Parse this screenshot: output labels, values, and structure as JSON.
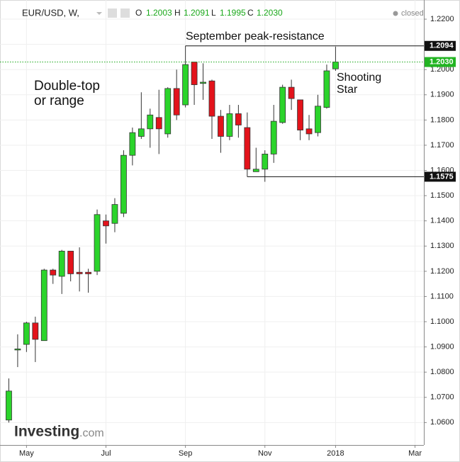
{
  "chart_data": {
    "type": "candlestick",
    "header": {
      "symbol": "EUR/USD, W,",
      "o_label": "O",
      "o": "1.2003",
      "h_label": "H",
      "h": "1.2091",
      "l_label": "L",
      "l": "1.1995",
      "c_label": "C",
      "c": "1.2030",
      "status": "closed"
    },
    "annotations": {
      "resistance": "September peak-resistance",
      "pattern": [
        "Double-top",
        "or range"
      ],
      "candle": [
        "Shooting",
        "Star"
      ]
    },
    "brand": {
      "name": "Investing",
      "suffix": ".com"
    },
    "up_color": "#2bd42b",
    "down_color": "#e3131b",
    "open": [
      1.061,
      1.0888,
      1.091,
      1.0995,
      1.0925,
      1.1205,
      1.118,
      1.128,
      1.1196,
      1.1196,
      1.12,
      1.14,
      1.139,
      1.143,
      1.166,
      1.1735,
      1.1765,
      1.181,
      1.1745,
      1.1925,
      1.186,
      1.203,
      1.1945,
      1.1955,
      1.1815,
      1.1735,
      1.1825,
      1.177,
      1.1595,
      1.1605,
      1.1665,
      1.179,
      1.193,
      1.188,
      1.1765,
      1.175,
      1.185,
      1.2003
    ],
    "high": [
      1.0775,
      1.095,
      1.1,
      1.102,
      1.121,
      1.121,
      1.1285,
      1.127,
      1.1295,
      1.121,
      1.1445,
      1.1425,
      1.149,
      1.168,
      1.177,
      1.191,
      1.1845,
      1.192,
      1.193,
      1.2,
      1.2094,
      1.203,
      1.2025,
      1.196,
      1.184,
      1.186,
      1.186,
      1.183,
      1.169,
      1.168,
      1.186,
      1.194,
      1.196,
      1.188,
      1.182,
      1.19,
      1.202,
      1.2091
    ],
    "low": [
      1.06,
      1.082,
      1.088,
      1.084,
      1.0925,
      1.115,
      1.111,
      1.116,
      1.112,
      1.1115,
      1.1185,
      1.131,
      1.1355,
      1.1415,
      1.162,
      1.1725,
      1.169,
      1.1665,
      1.173,
      1.18,
      1.185,
      1.186,
      1.188,
      1.1725,
      1.167,
      1.172,
      1.173,
      1.1575,
      1.1595,
      1.1555,
      1.163,
      1.1785,
      1.184,
      1.172,
      1.172,
      1.1735,
      1.1845,
      1.1995
    ],
    "close": [
      1.0725,
      1.0892,
      1.0995,
      1.093,
      1.1205,
      1.1185,
      1.128,
      1.119,
      1.119,
      1.119,
      1.1425,
      1.138,
      1.1465,
      1.166,
      1.175,
      1.1765,
      1.182,
      1.1765,
      1.1925,
      1.182,
      1.202,
      1.194,
      1.195,
      1.1815,
      1.1735,
      1.1825,
      1.178,
      1.1605,
      1.1605,
      1.1665,
      1.1795,
      1.193,
      1.1885,
      1.176,
      1.1745,
      1.1855,
      1.1995,
      1.203
    ],
    "xlim": [
      -1,
      47
    ],
    "xticks": [
      {
        "value": 2,
        "label": "May"
      },
      {
        "value": 11,
        "label": "Jul"
      },
      {
        "value": 20,
        "label": "Sep"
      },
      {
        "value": 29,
        "label": "Nov"
      },
      {
        "value": 37,
        "label": "2018"
      },
      {
        "value": 46,
        "label": "Mar"
      }
    ],
    "ylim": [
      1.0511,
      1.2276
    ],
    "yticks": [
      {
        "value": 1.06,
        "label": "1.0600"
      },
      {
        "value": 1.07,
        "label": "1.0700"
      },
      {
        "value": 1.08,
        "label": "1.0800"
      },
      {
        "value": 1.09,
        "label": "1.0900"
      },
      {
        "value": 1.1,
        "label": "1.1000"
      },
      {
        "value": 1.11,
        "label": "1.1100"
      },
      {
        "value": 1.12,
        "label": "1.1200"
      },
      {
        "value": 1.13,
        "label": "1.1300"
      },
      {
        "value": 1.14,
        "label": "1.1400"
      },
      {
        "value": 1.15,
        "label": "1.1500"
      },
      {
        "value": 1.16,
        "label": "1.1600"
      },
      {
        "value": 1.17,
        "label": "1.1700"
      },
      {
        "value": 1.18,
        "label": "1.1800"
      },
      {
        "value": 1.19,
        "label": "1.1900"
      },
      {
        "value": 1.2,
        "label": "1.2000"
      },
      {
        "value": 1.21,
        "label": "1.2100"
      },
      {
        "value": 1.22,
        "label": "1.2200"
      }
    ],
    "grid": true,
    "resistance": 1.2094,
    "support": 1.1575,
    "last_price": {
      "value": 1.203,
      "label": "1.2030"
    }
  }
}
